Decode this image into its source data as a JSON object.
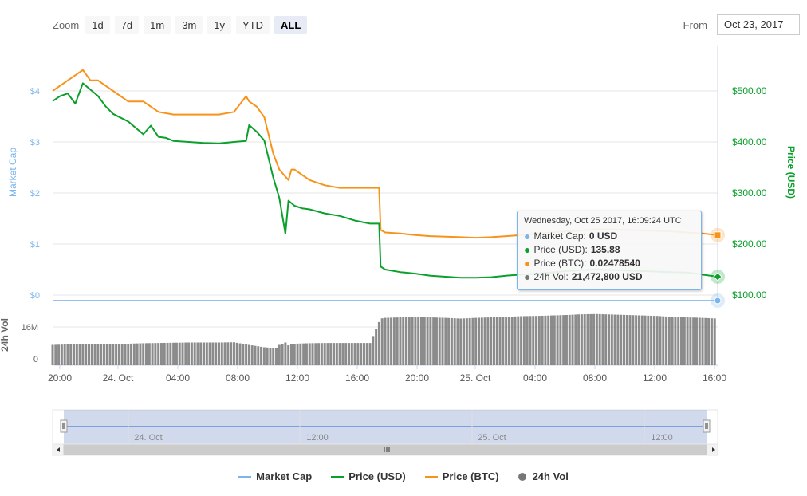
{
  "zoom": {
    "label": "Zoom",
    "buttons": [
      "1d",
      "7d",
      "1m",
      "3m",
      "1y",
      "YTD",
      "ALL"
    ],
    "active": "ALL"
  },
  "range": {
    "from_label": "From",
    "from_value": "Oct 23, 2017"
  },
  "colors": {
    "market_cap": "#7cb5ec",
    "price_usd": "#0ba02c",
    "price_btc": "#f7931a",
    "volume": "#777777"
  },
  "chart_data": {
    "type": "line",
    "x_ticks": [
      "20:00",
      "24. Oct",
      "04:00",
      "08:00",
      "12:00",
      "16:00",
      "20:00",
      "25. Oct",
      "04:00",
      "08:00",
      "12:00",
      "16:00"
    ],
    "left_axis": {
      "title": "Market Cap",
      "ticks": [
        "$4",
        "$3",
        "$2",
        "$1",
        "$0"
      ]
    },
    "right_axis": {
      "title": "Price (USD)",
      "ticks": [
        "$500.00",
        "$400.00",
        "$300.00",
        "$200.00",
        "$100.00"
      ],
      "ylim": [
        100,
        500
      ]
    },
    "volume_axis": {
      "title": "24h Vol",
      "ticks": [
        "16M",
        "0"
      ]
    },
    "series": [
      {
        "name": "Market Cap",
        "x_hours": [
          0,
          44
        ],
        "values": [
          0,
          0
        ]
      },
      {
        "name": "Price (USD)",
        "x_hours": [
          0,
          0.5,
          1,
          1.5,
          2,
          2.6,
          3,
          3.5,
          4,
          5,
          6,
          6.5,
          7,
          7.5,
          8,
          9,
          10,
          11,
          12,
          12.8,
          13,
          13.5,
          14,
          14.6,
          15,
          15.4,
          15.6,
          16,
          16.5,
          17,
          18,
          19,
          20,
          21,
          21.6,
          21.7,
          22,
          23,
          24,
          25,
          26,
          27,
          28,
          29,
          30,
          31,
          32,
          33,
          34,
          35,
          36,
          37,
          38,
          39,
          40,
          41,
          42,
          43,
          44
        ],
        "values": [
          480,
          490,
          495,
          475,
          515,
          500,
          490,
          470,
          455,
          440,
          415,
          432,
          410,
          408,
          402,
          400,
          398,
          397,
          400,
          402,
          433,
          420,
          403,
          330,
          290,
          220,
          285,
          275,
          270,
          268,
          260,
          255,
          246,
          240,
          240,
          156,
          150,
          145,
          142,
          138,
          136,
          134,
          134,
          135,
          138,
          140,
          142,
          144,
          147,
          149,
          150,
          149,
          148,
          147,
          146,
          145,
          144,
          140,
          136
        ]
      },
      {
        "name": "Price (BTC)",
        "x_hours": [
          0,
          0.5,
          1,
          1.5,
          2,
          2.5,
          3,
          4,
          5,
          6,
          7,
          8,
          9,
          10,
          11,
          12,
          12.8,
          13,
          13.5,
          14,
          14.6,
          15,
          15.6,
          15.8,
          16,
          17,
          18,
          19,
          20,
          21,
          21.6,
          21.7,
          22,
          23,
          24,
          25,
          26,
          27,
          28,
          29,
          30,
          31,
          32,
          33,
          34,
          35,
          36,
          37,
          38,
          39,
          40,
          41,
          42,
          43,
          44
        ],
        "values": [
          4.0,
          4.1,
          4.2,
          4.3,
          4.4,
          4.2,
          4.2,
          4.0,
          3.8,
          3.8,
          3.6,
          3.55,
          3.55,
          3.55,
          3.55,
          3.6,
          3.9,
          3.8,
          3.7,
          3.5,
          2.8,
          2.5,
          2.3,
          2.5,
          2.5,
          2.3,
          2.2,
          2.15,
          2.15,
          2.15,
          2.15,
          1.35,
          1.3,
          1.28,
          1.25,
          1.23,
          1.22,
          1.21,
          1.2,
          1.21,
          1.23,
          1.25,
          1.28,
          1.3,
          1.32,
          1.34,
          1.36,
          1.36,
          1.35,
          1.34,
          1.33,
          1.32,
          1.3,
          1.28,
          1.25
        ]
      },
      {
        "name": "24h Vol",
        "x_hours": [
          0,
          1,
          2,
          3,
          4,
          5,
          6,
          7,
          8,
          9,
          10,
          11,
          12,
          13,
          14,
          15,
          15.4,
          16,
          17,
          18,
          19,
          20,
          21,
          21.7,
          22,
          23,
          24,
          25,
          26,
          27,
          28,
          29,
          30,
          31,
          32,
          33,
          34,
          35,
          36,
          37,
          38,
          39,
          40,
          41,
          42,
          43,
          44
        ],
        "values": [
          8.5,
          8.7,
          8.8,
          8.8,
          9.0,
          9.0,
          9.2,
          9.3,
          9.4,
          9.5,
          9.5,
          9.5,
          9.6,
          8.5,
          7.5,
          7.0,
          8.0,
          9.0,
          9.2,
          9.3,
          9.3,
          9.3,
          9.3,
          19.5,
          19.8,
          20.0,
          20.0,
          20.0,
          19.8,
          19.5,
          19.8,
          20.0,
          20.2,
          20.5,
          20.6,
          20.8,
          21.0,
          21.3,
          21.4,
          21.2,
          21.0,
          20.8,
          20.6,
          20.2,
          20.0,
          19.8,
          19.5
        ]
      }
    ],
    "tooltip": {
      "title": "Wednesday, Oct 25 2017, 16:09:24 UTC",
      "rows": [
        {
          "name": "Market Cap:",
          "value": "0 USD",
          "color": "#7cb5ec"
        },
        {
          "name": "Price (USD):",
          "value": "135.88",
          "color": "#0ba02c"
        },
        {
          "name": "Price (BTC):",
          "value": "0.02478540",
          "color": "#f7931a"
        },
        {
          "name": "24h Vol:",
          "value": "21,472,800 USD",
          "color": "#777777"
        }
      ]
    },
    "navigator": {
      "labels": [
        "24. Oct",
        "12:00",
        "25. Oct",
        "12:00"
      ]
    },
    "legend": [
      "Market Cap",
      "Price (USD)",
      "Price (BTC)",
      "24h Vol"
    ]
  }
}
